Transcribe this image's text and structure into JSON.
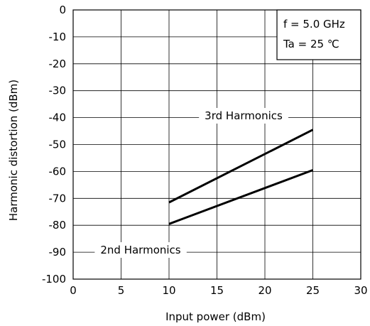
{
  "chart_data": {
    "type": "line",
    "xlabel": "Input power (dBm)",
    "ylabel": "Harmonic distortion (dBm)",
    "xlim": [
      0,
      30
    ],
    "ylim": [
      -100,
      0
    ],
    "x_ticks": [
      0,
      5,
      10,
      15,
      20,
      25,
      30
    ],
    "y_ticks": [
      0,
      -10,
      -20,
      -30,
      -40,
      -50,
      -60,
      -70,
      -80,
      -90,
      -100
    ],
    "grid": true,
    "legend": "none",
    "conditions": [
      "f = 5.0 GHz",
      "Ta = 25 ℃"
    ],
    "series": [
      {
        "name": "3rd Harmonics",
        "x": [
          10,
          25
        ],
        "y": [
          -71.5,
          -44.5
        ]
      },
      {
        "name": "2nd Harmonics",
        "x": [
          10,
          25
        ],
        "y": [
          -79.5,
          -59.5
        ]
      }
    ],
    "annotations": [
      {
        "text": "3rd Harmonics",
        "series": 0
      },
      {
        "text": "2nd Harmonics",
        "series": 1
      }
    ],
    "colors": {
      "line": "#000000",
      "grid": "#000000",
      "background": "#ffffff"
    }
  }
}
